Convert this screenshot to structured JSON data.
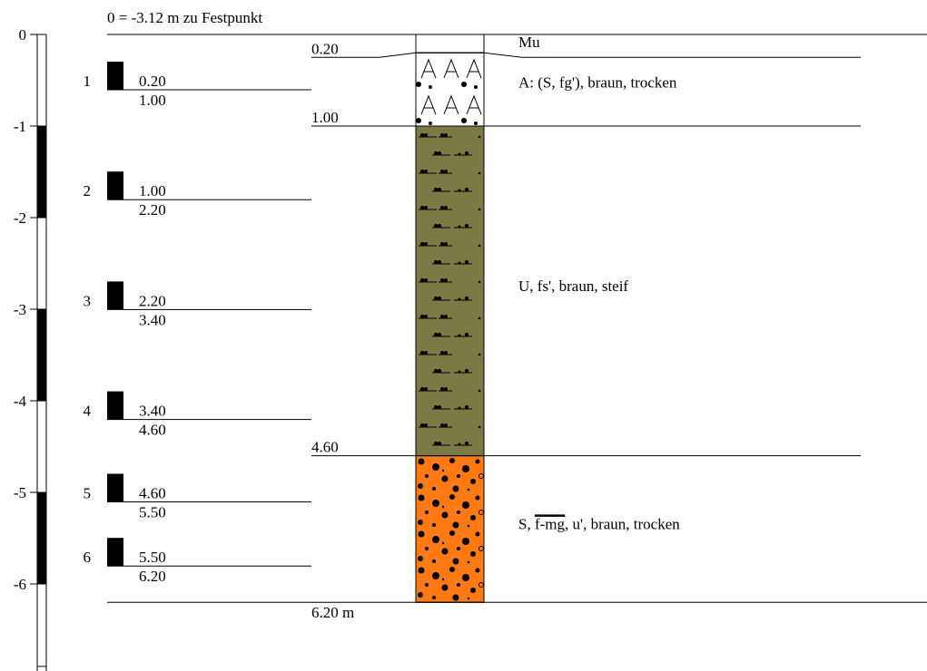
{
  "header": {
    "reference": "0 = -3.12 m zu Festpunkt"
  },
  "scale": {
    "ticks": [
      {
        "value": 0,
        "label": "0"
      },
      {
        "value": 1,
        "label": "-1"
      },
      {
        "value": 2,
        "label": "-2"
      },
      {
        "value": 3,
        "label": "-3"
      },
      {
        "value": 4,
        "label": "-4"
      },
      {
        "value": 5,
        "label": "-5"
      },
      {
        "value": 6,
        "label": "-6"
      }
    ],
    "max_depth": 6.9
  },
  "samples": [
    {
      "number": "1",
      "top": "0.20",
      "bottom": "1.00",
      "top_m": 0.2,
      "bottom_m": 1.0
    },
    {
      "number": "2",
      "top": "1.00",
      "bottom": "2.20",
      "top_m": 1.0,
      "bottom_m": 2.2
    },
    {
      "number": "3",
      "top": "2.20",
      "bottom": "3.40",
      "top_m": 2.2,
      "bottom_m": 3.4
    },
    {
      "number": "4",
      "top": "3.40",
      "bottom": "4.60",
      "top_m": 3.4,
      "bottom_m": 4.6
    },
    {
      "number": "5",
      "top": "4.60",
      "bottom": "5.50",
      "top_m": 4.6,
      "bottom_m": 5.5
    },
    {
      "number": "6",
      "top": "5.50",
      "bottom": "6.20",
      "top_m": 5.5,
      "bottom_m": 6.2
    }
  ],
  "layer_depths": [
    {
      "label": "0.20",
      "depth_m": 0.2
    },
    {
      "label": "1.00",
      "depth_m": 1.0
    },
    {
      "label": "4.60",
      "depth_m": 4.6
    }
  ],
  "final_depth": {
    "label": "6.20 m",
    "depth_m": 6.2
  },
  "layers": [
    {
      "top_m": 0.0,
      "bottom_m": 0.2,
      "pattern": "none",
      "color": "#ffffff",
      "desc": "Mu"
    },
    {
      "top_m": 0.2,
      "bottom_m": 1.0,
      "pattern": "fill-A",
      "color": "#ffffff",
      "desc": "A: (S, fg'), braun, trocken"
    },
    {
      "top_m": 1.0,
      "bottom_m": 4.6,
      "pattern": "silt",
      "color": "#7a7a45",
      "desc": "U, fs', braun, steif"
    },
    {
      "top_m": 4.6,
      "bottom_m": 6.2,
      "pattern": "sand",
      "color": "#ff7a12",
      "desc_pre": "S, ",
      "desc_over": "f-mg",
      "desc_post": ", u', braun, trocken"
    }
  ]
}
